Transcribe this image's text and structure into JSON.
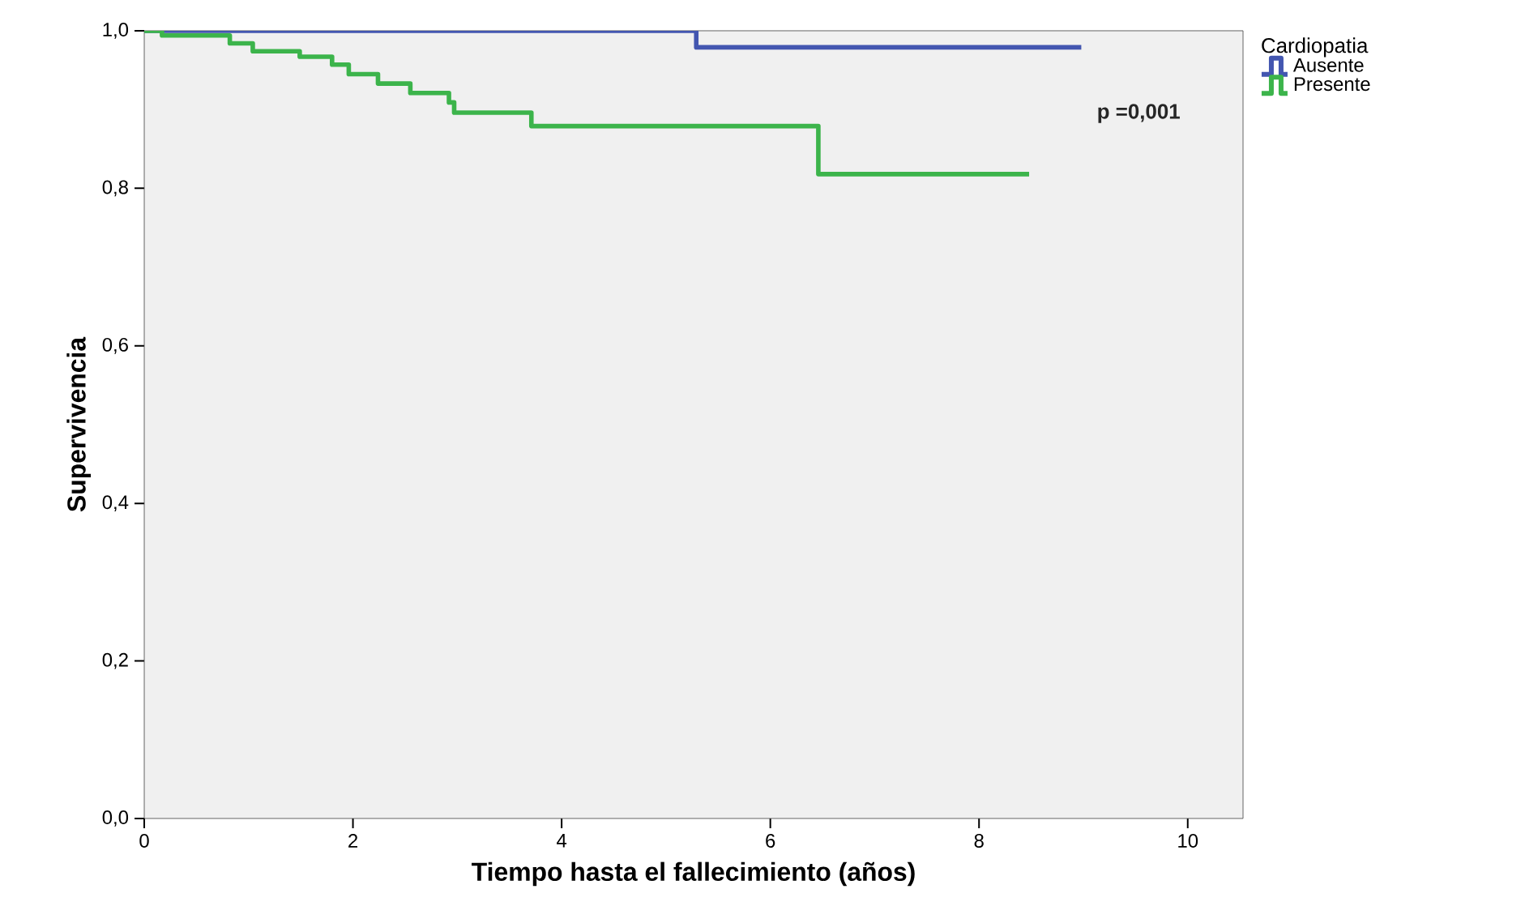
{
  "chart_data": {
    "type": "step",
    "xlabel": "Tiempo hasta el fallecimiento (años)",
    "ylabel": "Supervivencia",
    "legend_title": "Cardiopatia",
    "legend": "right",
    "xlim": [
      0,
      10.53
    ],
    "ylim": [
      0,
      1.0
    ],
    "xticks": [
      0,
      2,
      4,
      6,
      8,
      10
    ],
    "yticks": [
      {
        "value": 0,
        "label": "0,0"
      },
      {
        "value": 0.2,
        "label": "0,2"
      },
      {
        "value": 0.4,
        "label": "0,4"
      },
      {
        "value": 0.6,
        "label": "0,6"
      },
      {
        "value": 0.8,
        "label": "0,8"
      },
      {
        "value": 1.0,
        "label": "1,0"
      }
    ],
    "annotations": [
      "p =0,001"
    ],
    "series": [
      {
        "name": "Ausente",
        "color": "#4356b0",
        "x": [
          0,
          5.29,
          8.98
        ],
        "values": [
          1.0,
          0.979,
          0.979
        ]
      },
      {
        "name": "Presente",
        "color": "#3cb44b",
        "x": [
          0,
          0.17,
          0.82,
          1.04,
          1.49,
          1.8,
          1.96,
          2.24,
          2.55,
          2.92,
          2.97,
          3.71,
          6.46,
          8.48
        ],
        "values": [
          1.0,
          0.994,
          0.984,
          0.974,
          0.967,
          0.957,
          0.945,
          0.933,
          0.921,
          0.909,
          0.896,
          0.879,
          0.818,
          0.818
        ]
      }
    ]
  }
}
